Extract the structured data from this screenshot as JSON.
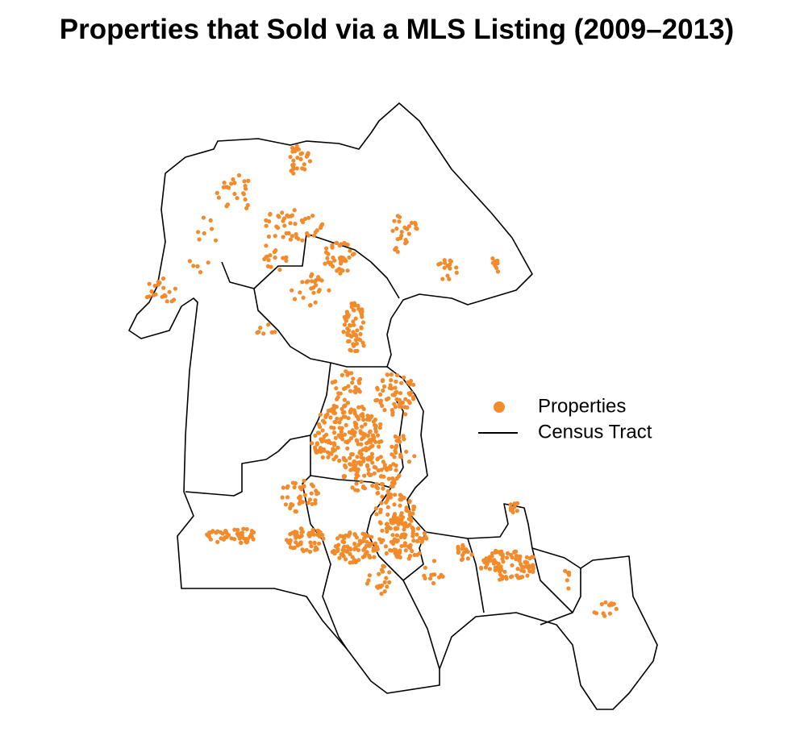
{
  "title": "Properties that Sold via a MLS Listing (2009–2013)",
  "legend": {
    "items": [
      {
        "label": "Properties",
        "color": "#f28b2c"
      },
      {
        "label": "Census Tract",
        "color": "#000000"
      }
    ]
  }
}
